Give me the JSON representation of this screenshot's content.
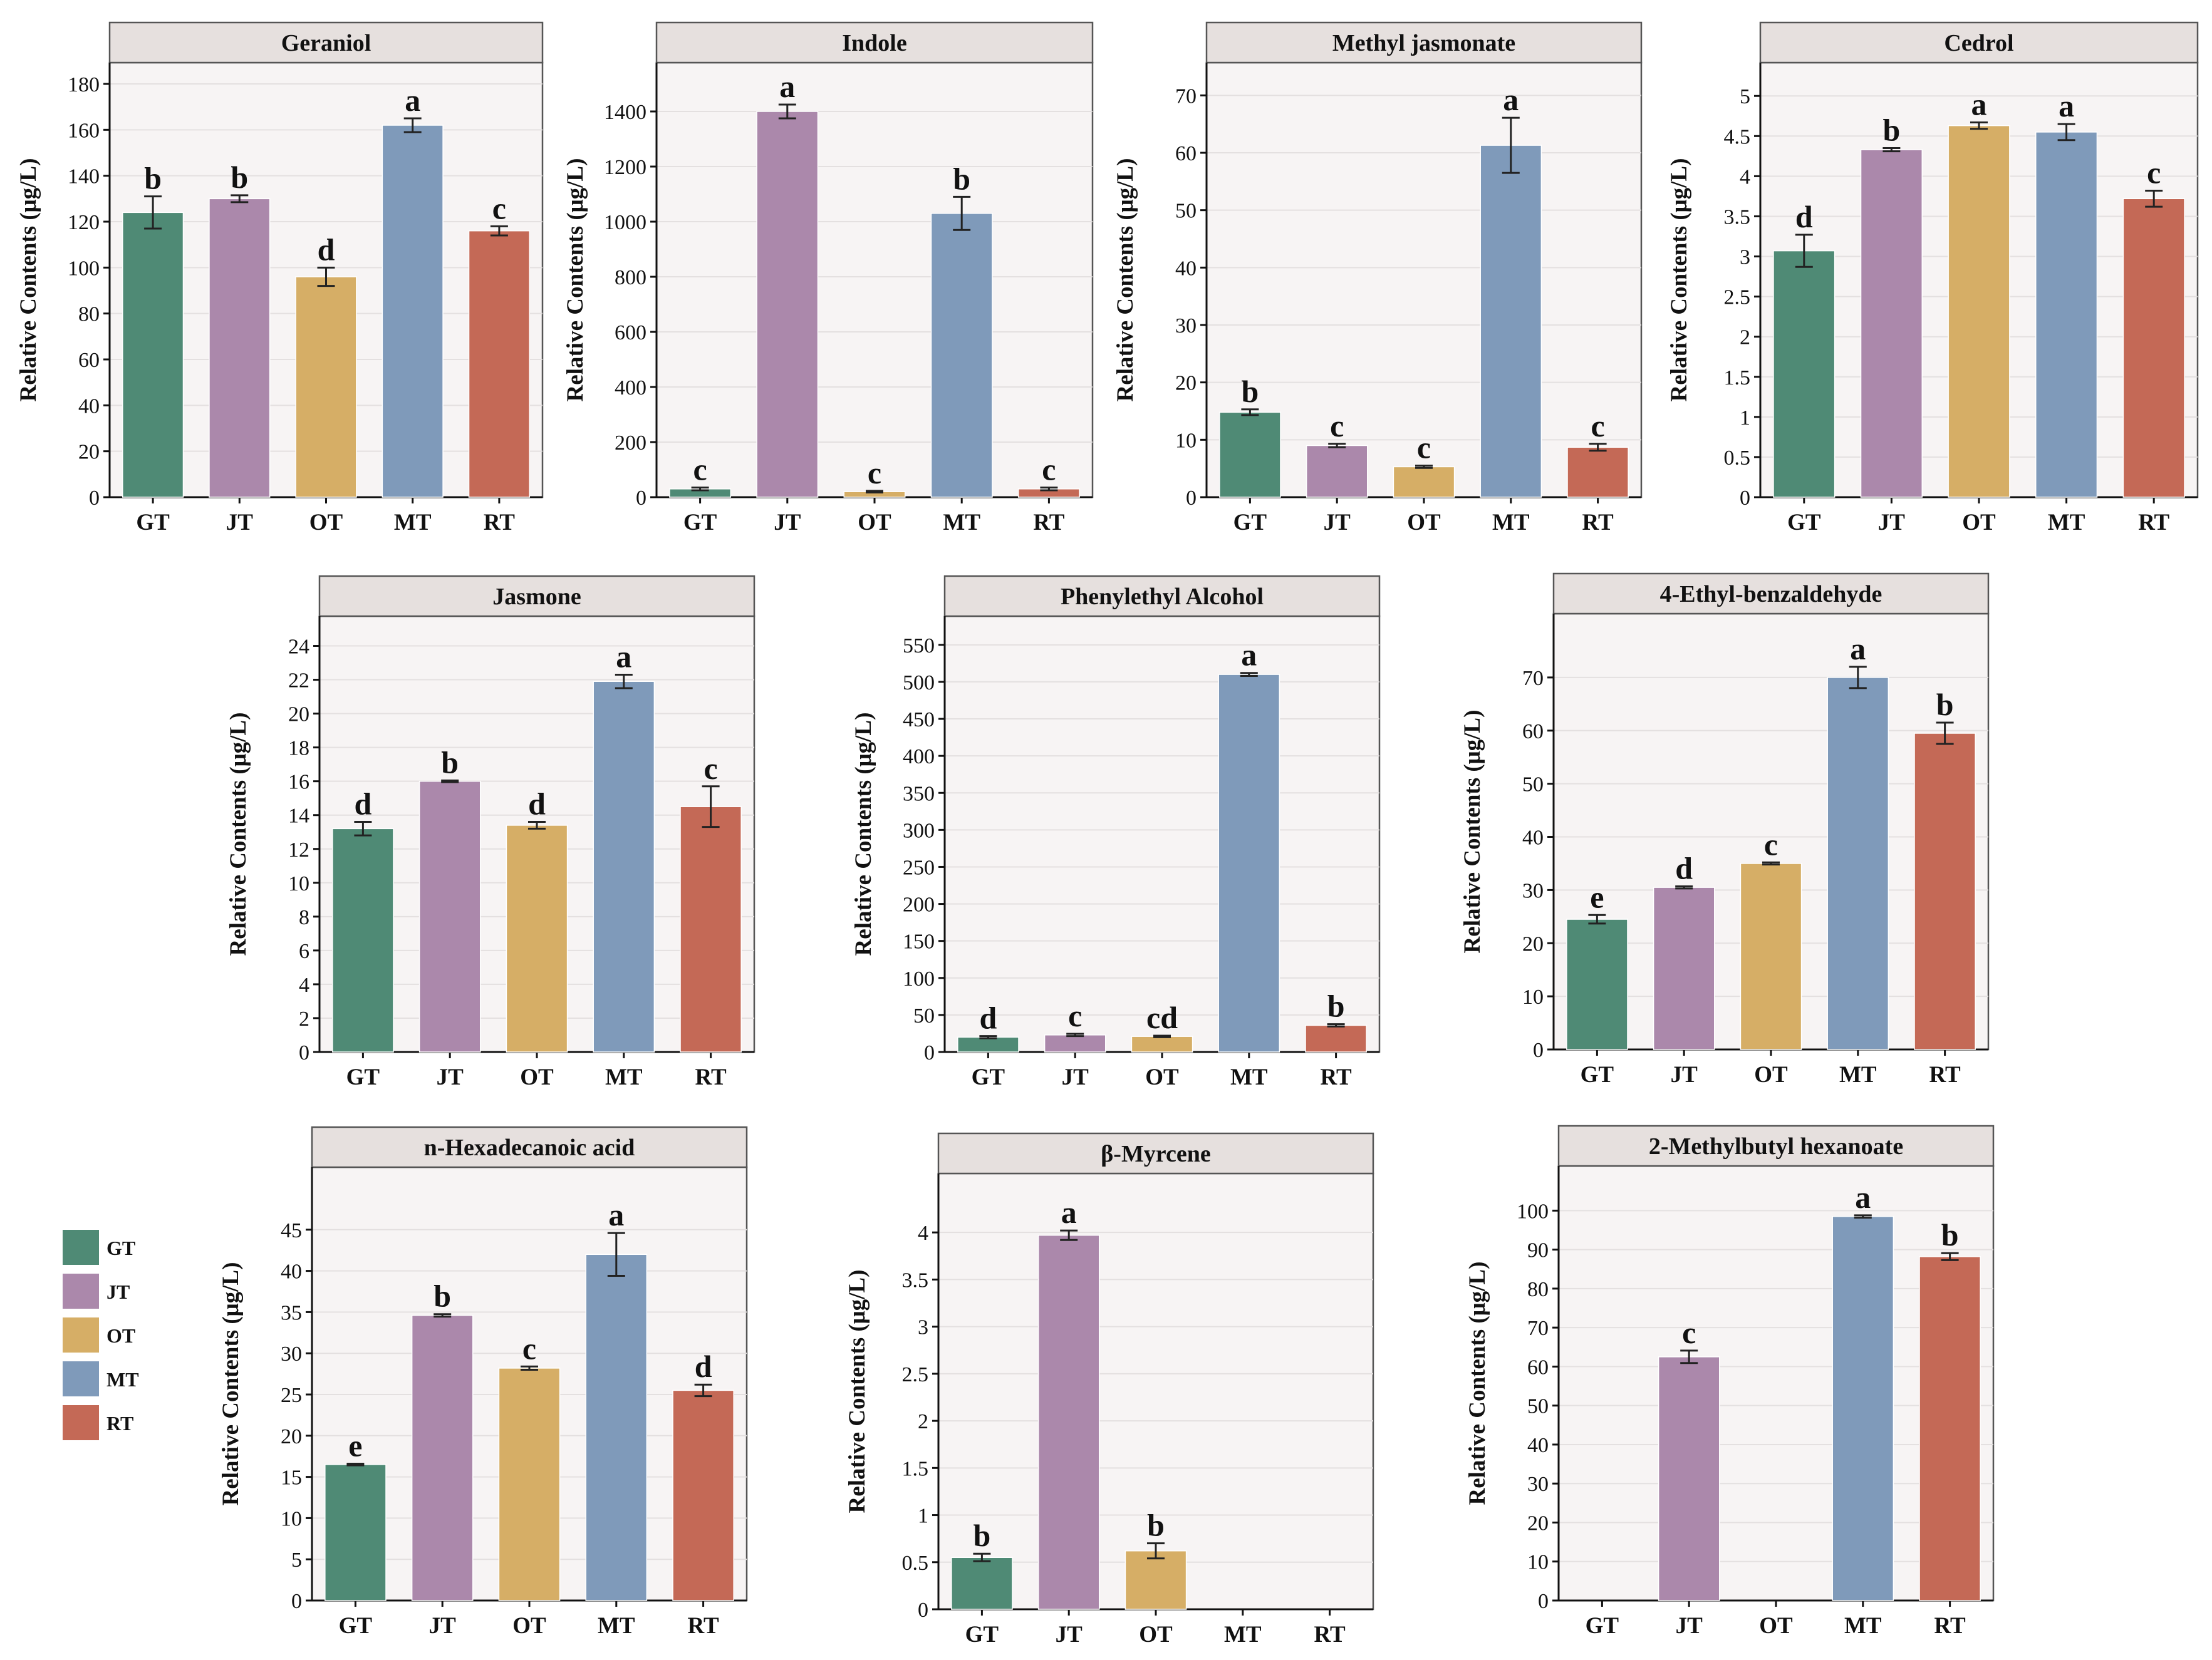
{
  "colors": {
    "GT": "#4f8a75",
    "JT": "#ab88ab",
    "OT": "#d6ae66",
    "MT": "#7f9aba",
    "RT": "#c46956"
  },
  "legend": {
    "items": [
      {
        "key": "GT",
        "label": "GT"
      },
      {
        "key": "JT",
        "label": "JT"
      },
      {
        "key": "OT",
        "label": "OT"
      },
      {
        "key": "MT",
        "label": "MT"
      },
      {
        "key": "RT",
        "label": "RT"
      }
    ]
  },
  "chart_data": [
    {
      "type": "bar",
      "title": "Geraniol",
      "ylabel": "Relative Contents (μg/L)",
      "categories": [
        "GT",
        "JT",
        "OT",
        "MT",
        "RT"
      ],
      "values": [
        124,
        130,
        96,
        162,
        116
      ],
      "errors": [
        7,
        1.5,
        4,
        3,
        2
      ],
      "letters": [
        "b",
        "b",
        "d",
        "a",
        "c"
      ],
      "ylim": [
        0,
        180
      ],
      "yticks": [
        0,
        20,
        40,
        60,
        80,
        100,
        120,
        140,
        160,
        180
      ],
      "ytick_labels": [
        "0",
        "20",
        "40",
        "60",
        "80",
        "100",
        "120",
        "140",
        "160",
        "180"
      ]
    },
    {
      "type": "bar",
      "title": "Indole",
      "ylabel": "Relative Contents (μg/L)",
      "categories": [
        "GT",
        "JT",
        "OT",
        "MT",
        "RT"
      ],
      "values": [
        30,
        1400,
        20,
        1030,
        30
      ],
      "errors": [
        5,
        25,
        3,
        60,
        5
      ],
      "letters": [
        "c",
        "a",
        "c",
        "b",
        "c"
      ],
      "ylim": [
        0,
        1500
      ],
      "yticks": [
        0,
        200,
        400,
        600,
        800,
        1000,
        1200,
        1400
      ],
      "ytick_labels": [
        "0",
        "200",
        "400",
        "600",
        "800",
        "1000",
        "1200",
        "1400"
      ]
    },
    {
      "type": "bar",
      "title": "Methyl jasmonate",
      "ylabel": "Relative Contents (μg/L)",
      "categories": [
        "GT",
        "JT",
        "OT",
        "MT",
        "RT"
      ],
      "values": [
        14.8,
        9,
        5.3,
        61.3,
        8.7
      ],
      "errors": [
        0.5,
        0.3,
        0.2,
        4.8,
        0.6
      ],
      "letters": [
        "b",
        "c",
        "c",
        "a",
        "c"
      ],
      "ylim": [
        0,
        72
      ],
      "yticks": [
        0,
        10,
        20,
        30,
        40,
        50,
        60,
        70
      ],
      "ytick_labels": [
        "0",
        "10",
        "20",
        "30",
        "40",
        "50",
        "60",
        "70"
      ]
    },
    {
      "type": "bar",
      "title": "Cedrol",
      "ylabel": "Relative Contents (μg/L)",
      "categories": [
        "GT",
        "JT",
        "OT",
        "MT",
        "RT"
      ],
      "values": [
        3.07,
        4.33,
        4.63,
        4.55,
        3.72
      ],
      "errors": [
        0.2,
        0.02,
        0.04,
        0.1,
        0.1
      ],
      "letters": [
        "d",
        "b",
        "a",
        "a",
        "c"
      ],
      "ylim": [
        0,
        5.15
      ],
      "yticks": [
        0,
        0.5,
        1,
        1.5,
        2,
        2.5,
        3,
        3.5,
        4,
        4.5,
        5
      ],
      "ytick_labels": [
        "0",
        "0.5",
        "1",
        "1.5",
        "2",
        "2.5",
        "3",
        "3.5",
        "4",
        "4.5",
        "5"
      ]
    },
    {
      "type": "bar",
      "title": "Jasmone",
      "ylabel": "Relative Contents (μg/L)",
      "categories": [
        "GT",
        "JT",
        "OT",
        "MT",
        "RT"
      ],
      "values": [
        13.2,
        16,
        13.4,
        21.9,
        14.5
      ],
      "errors": [
        0.4,
        0.05,
        0.2,
        0.4,
        1.2
      ],
      "letters": [
        "d",
        "b",
        "d",
        "a",
        "c"
      ],
      "ylim": [
        0,
        24.5
      ],
      "yticks": [
        0,
        2,
        4,
        6,
        8,
        10,
        12,
        14,
        16,
        18,
        20,
        22,
        24
      ],
      "ytick_labels": [
        "0",
        "2",
        "4",
        "6",
        "8",
        "10",
        "12",
        "14",
        "16",
        "18",
        "20",
        "22",
        "24"
      ]
    },
    {
      "type": "bar",
      "title": "Phenylethyl Alcohol",
      "ylabel": "Relative Contents (μg/L)",
      "categories": [
        "GT",
        "JT",
        "OT",
        "MT",
        "RT"
      ],
      "values": [
        20,
        23,
        21,
        510,
        36
      ],
      "errors": [
        1.5,
        1.5,
        1,
        2,
        1.5
      ],
      "letters": [
        "d",
        "c",
        "cd",
        "a",
        "b"
      ],
      "ylim": [
        0,
        560
      ],
      "yticks": [
        0,
        50,
        100,
        150,
        200,
        250,
        300,
        350,
        400,
        450,
        500,
        550
      ],
      "ytick_labels": [
        "0",
        "50",
        "100",
        "150",
        "200",
        "250",
        "300",
        "350",
        "400",
        "450",
        "500",
        "550"
      ]
    },
    {
      "type": "bar",
      "title": "4-Ethyl-benzaldehyde",
      "ylabel": "Relative Contents (μg/L)",
      "categories": [
        "GT",
        "JT",
        "OT",
        "MT",
        "RT"
      ],
      "values": [
        24.5,
        30.5,
        35,
        70,
        59.5
      ],
      "errors": [
        0.8,
        0.2,
        0.2,
        2,
        2
      ],
      "letters": [
        "e",
        "d",
        "c",
        "a",
        "b"
      ],
      "ylim": [
        0,
        78
      ],
      "yticks": [
        0,
        10,
        20,
        30,
        40,
        50,
        60,
        70
      ],
      "ytick_labels": [
        "0",
        "10",
        "20",
        "30",
        "40",
        "50",
        "60",
        "70"
      ]
    },
    {
      "type": "bar",
      "title": "n-Hexadecanoic acid",
      "ylabel": "Relative Contents (μg/L)",
      "categories": [
        "GT",
        "JT",
        "OT",
        "MT",
        "RT"
      ],
      "values": [
        16.5,
        34.6,
        28.2,
        42,
        25.5
      ],
      "errors": [
        0.1,
        0.15,
        0.2,
        2.6,
        0.7
      ],
      "letters": [
        "e",
        "b",
        "c",
        "a",
        "d"
      ],
      "ylim": [
        0,
        50
      ],
      "yticks": [
        0,
        5,
        10,
        15,
        20,
        25,
        30,
        35,
        40,
        45
      ],
      "ytick_labels": [
        "0",
        "5",
        "10",
        "15",
        "20",
        "25",
        "30",
        "35",
        "40",
        "45"
      ]
    },
    {
      "type": "bar",
      "title": "β-Myrcene",
      "ylabel": "Relative Contents (μg/L)",
      "categories": [
        "GT",
        "JT",
        "OT",
        "MT",
        "RT"
      ],
      "values": [
        0.55,
        3.97,
        0.62,
        0,
        0
      ],
      "errors": [
        0.04,
        0.05,
        0.08,
        0,
        0
      ],
      "letters": [
        "b",
        "a",
        "b",
        "",
        ""
      ],
      "ylim": [
        0,
        4.4
      ],
      "yticks": [
        0,
        0.5,
        1,
        1.5,
        2,
        2.5,
        3,
        3.5,
        4
      ],
      "ytick_labels": [
        "0",
        "0.5",
        "1",
        "1.5",
        "2",
        "2.5",
        "3",
        "3.5",
        "4"
      ]
    },
    {
      "type": "bar",
      "title": "2-Methylbutyl hexanoate",
      "ylabel": "Relative Contents (μg/L)",
      "categories": [
        "GT",
        "JT",
        "OT",
        "MT",
        "RT"
      ],
      "values": [
        0,
        62.5,
        0,
        98.5,
        88.2
      ],
      "errors": [
        0,
        1.6,
        0,
        0.3,
        0.9
      ],
      "letters": [
        "",
        "c",
        "",
        "a",
        "b"
      ],
      "ylim": [
        0,
        106
      ],
      "yticks": [
        0,
        10,
        20,
        30,
        40,
        50,
        60,
        70,
        80,
        90,
        100
      ],
      "ytick_labels": [
        "0",
        "10",
        "20",
        "30",
        "40",
        "50",
        "60",
        "70",
        "80",
        "90",
        "100"
      ]
    }
  ]
}
